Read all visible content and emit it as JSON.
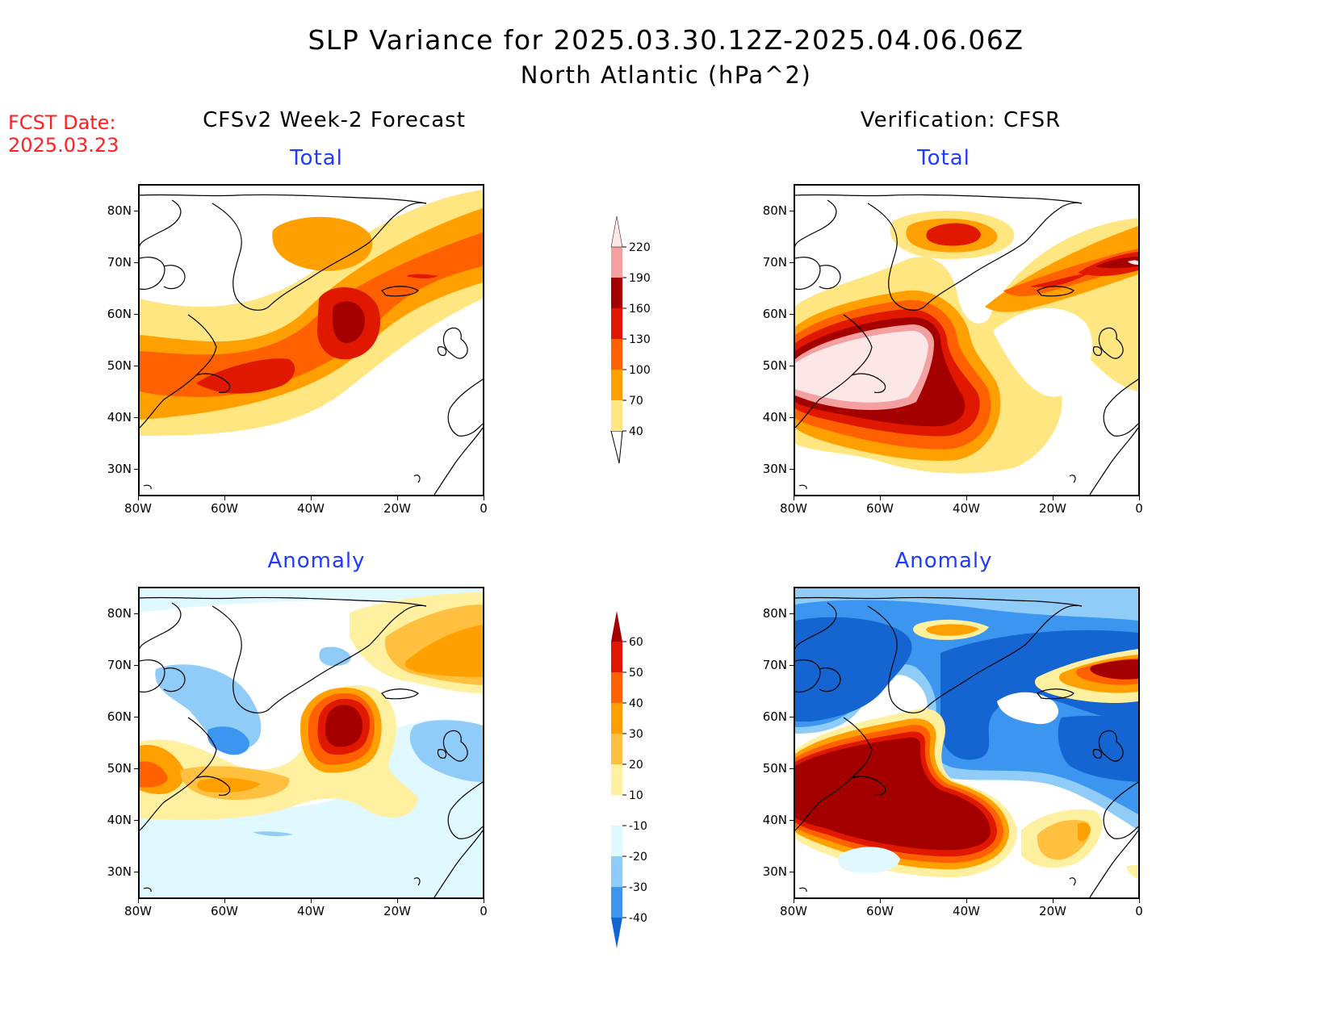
{
  "title": "SLP Variance for 2025.03.30.12Z-2025.04.06.06Z",
  "subtitle": "North Atlantic (hPa^2)",
  "fcst_label": "FCST Date:",
  "fcst_date": "2025.03.23",
  "left_column": "CFSv2 Week-2 Forecast",
  "right_column": "Verification: CFSR",
  "panels": {
    "fc_total": {
      "title": "Total"
    },
    "vf_total": {
      "title": "Total"
    },
    "fc_anom": {
      "title": "Anomaly"
    },
    "vf_anom": {
      "title": "Anomaly"
    }
  },
  "lat_labels": [
    "80N",
    "70N",
    "60N",
    "50N",
    "40N",
    "30N"
  ],
  "lon_labels": [
    "80W",
    "60W",
    "40W",
    "20W",
    "0"
  ],
  "total_colorbar": {
    "levels": [
      "40",
      "70",
      "100",
      "130",
      "160",
      "190",
      "220"
    ],
    "colors": [
      "#ffe680",
      "#ffa000",
      "#ff6000",
      "#e01800",
      "#a50000",
      "#f4a0a0",
      "#fde6e6"
    ]
  },
  "anomaly_colorbar": {
    "levels": [
      "60",
      "50",
      "40",
      "30",
      "20",
      "10",
      "-10",
      "-20",
      "-30",
      "-40"
    ],
    "colors": [
      "#a50000",
      "#e01800",
      "#ff6000",
      "#ffa000",
      "#ffc040",
      "#fff0a0",
      "#ffffff",
      "#e0f8ff",
      "#90ccf8",
      "#3c96f0",
      "#1464d2"
    ]
  }
}
